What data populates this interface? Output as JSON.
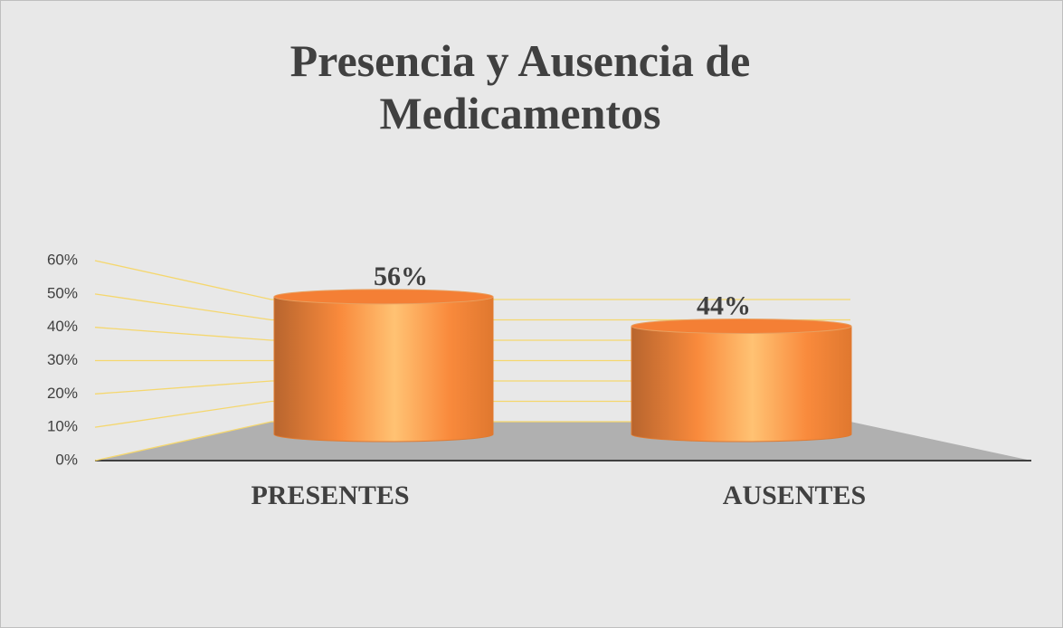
{
  "chart_data": {
    "type": "bar3d",
    "title": "Presencia y Ausencia de Medicamentos",
    "categories": [
      "PRESENTES",
      "AUSENTES"
    ],
    "values": [
      56,
      44
    ],
    "value_labels": [
      "56%",
      "44%"
    ],
    "color": "#f98a3c",
    "ylim": [
      0,
      60
    ],
    "yticks": [
      {
        "value": 0,
        "label": "0%"
      },
      {
        "value": 10,
        "label": "10%"
      },
      {
        "value": 20,
        "label": "20%"
      },
      {
        "value": 30,
        "label": "30%"
      },
      {
        "value": 40,
        "label": "40%"
      },
      {
        "value": 50,
        "label": "50%"
      },
      {
        "value": 60,
        "label": "60%"
      }
    ],
    "grid": true
  }
}
